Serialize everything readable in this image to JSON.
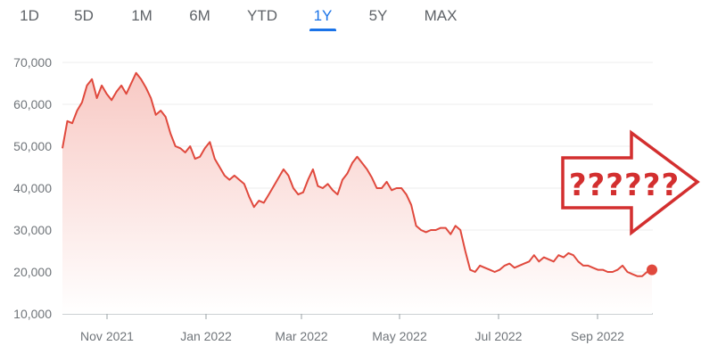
{
  "range_tabs": [
    {
      "label": "1D",
      "active": false
    },
    {
      "label": "5D",
      "active": false
    },
    {
      "label": "1M",
      "active": false
    },
    {
      "label": "6M",
      "active": false
    },
    {
      "label": "YTD",
      "active": false
    },
    {
      "label": "1Y",
      "active": true
    },
    {
      "label": "5Y",
      "active": false
    },
    {
      "label": "MAX",
      "active": false
    }
  ],
  "callout": {
    "text": "??????"
  },
  "colors": {
    "line": "#e0493d",
    "fill_top": "#f8c9c4",
    "fill_bottom": "#ffffff",
    "grid": "#ececec",
    "axis": "#9aa0a6",
    "tab_active": "#1a73e8",
    "tab_inactive": "#5f6368",
    "arrow": "#d32f2f"
  },
  "chart_data": {
    "type": "area",
    "title": "",
    "xlabel": "",
    "ylabel": "",
    "x_ticks": [
      "Nov 2021",
      "Jan 2022",
      "Mar 2022",
      "May 2022",
      "Jul 2022",
      "Sep 2022"
    ],
    "y_ticks": [
      10000,
      20000,
      30000,
      40000,
      50000,
      60000,
      70000
    ],
    "y_tick_labels": [
      "10,000",
      "20,000",
      "30,000",
      "40,000",
      "50,000",
      "60,000",
      "70,000"
    ],
    "ylim": [
      10000,
      70000
    ],
    "grid": true,
    "series": [
      {
        "values": [
          49500,
          56000,
          55500,
          58500,
          60500,
          64500,
          66000,
          61500,
          64500,
          62500,
          61000,
          63000,
          64500,
          62500,
          65000,
          67500,
          66000,
          64000,
          61500,
          57500,
          58500,
          57000,
          53000,
          50000,
          49500,
          48500,
          50000,
          47000,
          47500,
          49500,
          51000,
          47000,
          45000,
          43000,
          42000,
          43000,
          42000,
          41000,
          38000,
          35500,
          37000,
          36500,
          38500,
          40500,
          42500,
          44500,
          43000,
          40000,
          38500,
          39000,
          42000,
          44500,
          40500,
          40000,
          41000,
          39500,
          38500,
          42000,
          43500,
          46000,
          47500,
          46000,
          44500,
          42500,
          40000,
          40000,
          41500,
          39500,
          40000,
          40000,
          38500,
          36000,
          31000,
          30000,
          29500,
          30000,
          30000,
          30500,
          30500,
          29000,
          31000,
          30000,
          25000,
          20500,
          20000,
          21500,
          21000,
          20500,
          20000,
          20500,
          21500,
          22000,
          21000,
          21500,
          22000,
          22500,
          24000,
          22500,
          23500,
          23000,
          22500,
          24000,
          23500,
          24500,
          24000,
          22500,
          21500,
          21500,
          21000,
          20500,
          20500,
          20000,
          20000,
          20500,
          21500,
          20000,
          19500,
          19000,
          19000,
          20000,
          20500
        ]
      }
    ]
  }
}
